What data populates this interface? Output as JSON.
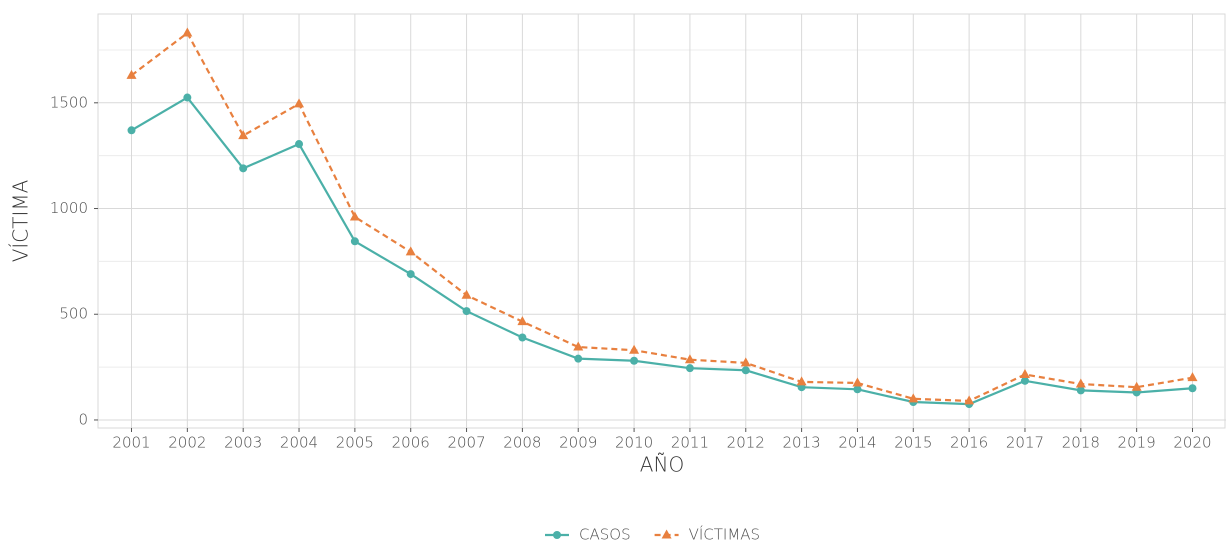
{
  "chart_data": {
    "type": "line",
    "x_label": "AÑO",
    "y_label": "VÍCTIMA",
    "categories": [
      "2001",
      "2002",
      "2003",
      "2004",
      "2005",
      "2006",
      "2007",
      "2008",
      "2009",
      "2010",
      "2011",
      "2012",
      "2013",
      "2014",
      "2015",
      "2016",
      "2017",
      "2018",
      "2019",
      "2020"
    ],
    "series": [
      {
        "name": "CASOS",
        "color": "#4bb0a8",
        "line_style": "solid",
        "marker": "circle",
        "values": [
          1370,
          1525,
          1190,
          1305,
          845,
          690,
          515,
          390,
          290,
          280,
          245,
          235,
          155,
          145,
          85,
          75,
          185,
          140,
          130,
          150
        ]
      },
      {
        "name": "VÍCTIMAS",
        "color": "#e8803f",
        "line_style": "dashed",
        "marker": "triangle",
        "values": [
          1630,
          1830,
          1345,
          1495,
          960,
          795,
          590,
          465,
          345,
          330,
          285,
          270,
          180,
          175,
          100,
          90,
          215,
          170,
          155,
          200
        ]
      }
    ],
    "ylim": [
      -38,
      1920
    ],
    "yticks": [
      0,
      500,
      1000,
      1500
    ],
    "minor_yticks": [
      250,
      750,
      1250,
      1750
    ],
    "grid": true,
    "legend": "bottom"
  }
}
